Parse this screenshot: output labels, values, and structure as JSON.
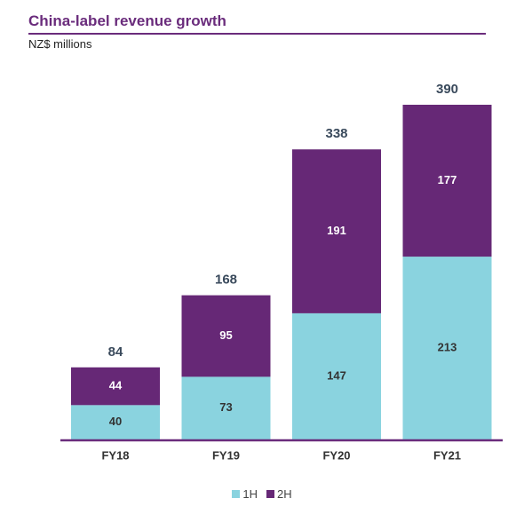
{
  "header": {
    "title": "China-label revenue growth",
    "subtitle": "NZ$ millions"
  },
  "chart_data": {
    "type": "bar",
    "stacked": true,
    "categories": [
      "FY18",
      "FY19",
      "FY20",
      "FY21"
    ],
    "series": [
      {
        "name": "1H",
        "values": [
          40,
          73,
          147,
          213
        ],
        "color": "#8ad3df"
      },
      {
        "name": "2H",
        "values": [
          44,
          95,
          191,
          177
        ],
        "color": "#662876"
      }
    ],
    "totals": [
      84,
      168,
      338,
      390
    ],
    "ylim": [
      0,
      390
    ],
    "grid": false,
    "legend": "bottom-center",
    "axis_color": "#6a2c7c",
    "total_label_color": "#3a4a5c"
  }
}
